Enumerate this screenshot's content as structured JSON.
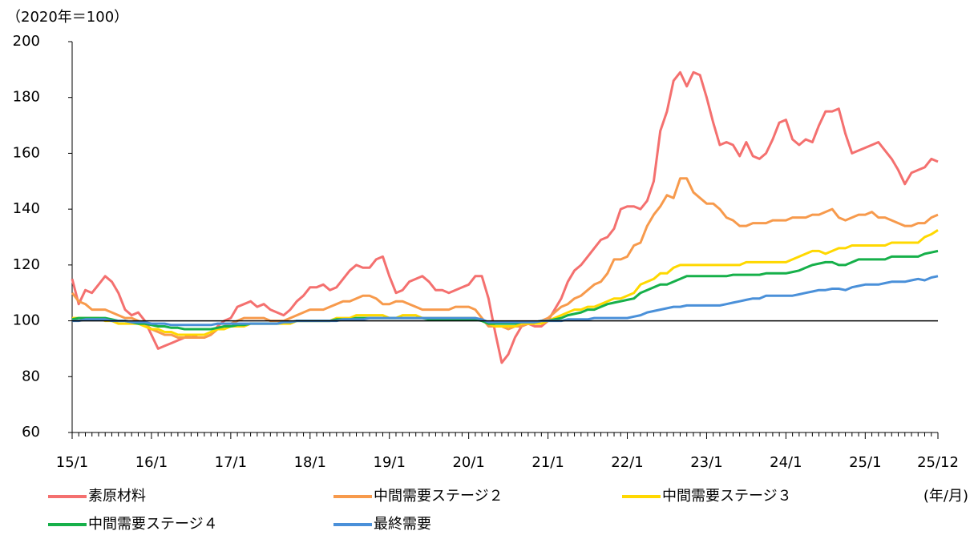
{
  "chart_data": {
    "type": "line",
    "ylabel": "（2020年＝100）",
    "xlabel": "(年/月)",
    "categories": [
      "15/1",
      null,
      null,
      null,
      null,
      null,
      null,
      null,
      null,
      null,
      null,
      null,
      "16/1",
      null,
      null,
      null,
      null,
      null,
      null,
      null,
      null,
      null,
      null,
      null,
      "17/1",
      null,
      null,
      null,
      null,
      null,
      null,
      null,
      null,
      null,
      null,
      null,
      "18/1",
      null,
      null,
      null,
      null,
      null,
      null,
      null,
      null,
      null,
      null,
      null,
      "19/1",
      null,
      null,
      null,
      null,
      null,
      null,
      null,
      null,
      null,
      null,
      null,
      "20/1",
      null,
      null,
      null,
      null,
      null,
      null,
      null,
      null,
      null,
      null,
      null,
      "21/1",
      null,
      null,
      null,
      null,
      null,
      null,
      null,
      null,
      null,
      null,
      null,
      "22/1",
      null,
      null,
      null,
      null,
      null,
      null,
      null,
      null,
      null,
      null,
      null,
      "23/1",
      null,
      null,
      null,
      null,
      null,
      null,
      null,
      null,
      null,
      null,
      null,
      "24/1",
      null,
      null,
      null,
      null,
      null,
      null,
      null,
      null,
      null,
      null,
      null,
      "25/1",
      null,
      null,
      null,
      null,
      null,
      null,
      null,
      null,
      null,
      null,
      "25/12"
    ],
    "ylim": [
      60,
      200
    ],
    "yticks": [
      60,
      80,
      100,
      120,
      140,
      160,
      180,
      200
    ],
    "baseline": 100,
    "series": [
      {
        "name": "素原材料",
        "color": "#f4706f",
        "values": [
          115,
          106,
          111,
          110,
          113,
          116,
          114,
          110,
          104,
          102,
          103,
          100,
          95,
          90,
          91,
          92,
          93,
          94,
          95,
          94,
          94,
          95,
          98,
          100,
          101,
          105,
          106,
          107,
          105,
          106,
          104,
          103,
          102,
          104,
          107,
          109,
          112,
          112,
          113,
          111,
          112,
          115,
          118,
          120,
          119,
          119,
          122,
          123,
          116,
          110,
          111,
          114,
          115,
          116,
          114,
          111,
          111,
          110,
          111,
          112,
          113,
          116,
          116,
          108,
          96,
          85,
          88,
          94,
          98,
          99,
          98,
          98,
          100,
          104,
          108,
          114,
          118,
          120,
          123,
          126,
          129,
          130,
          133,
          140,
          141,
          141,
          140,
          143,
          150,
          168,
          175,
          186,
          189,
          184,
          189,
          188,
          180,
          171,
          163,
          164,
          163,
          159,
          164,
          159,
          158,
          160,
          165,
          171,
          172,
          165,
          163,
          165,
          164,
          170,
          175,
          175,
          176,
          167,
          160,
          161,
          162,
          163,
          164,
          161,
          158,
          154,
          149,
          153,
          154,
          155,
          158,
          157
        ]
      },
      {
        "name": "中間需要ステージ２",
        "color": "#f79a4c",
        "values": [
          110,
          107,
          106,
          104,
          104,
          104,
          103,
          102,
          101,
          101,
          100,
          99,
          97,
          96,
          95,
          95,
          94,
          94,
          94,
          94,
          94,
          95,
          97,
          98,
          99,
          100,
          101,
          101,
          101,
          101,
          100,
          100,
          100,
          101,
          102,
          103,
          104,
          104,
          104,
          105,
          106,
          107,
          107,
          108,
          109,
          109,
          108,
          106,
          106,
          107,
          107,
          106,
          105,
          104,
          104,
          104,
          104,
          104,
          105,
          105,
          105,
          104,
          101,
          98,
          98,
          98,
          97,
          98,
          98,
          99,
          99,
          100,
          101,
          103,
          105,
          106,
          108,
          109,
          111,
          113,
          114,
          117,
          122,
          122,
          123,
          127,
          128,
          134,
          138,
          141,
          145,
          144,
          151,
          151,
          146,
          144,
          142,
          142,
          140,
          137,
          136,
          134,
          134,
          135,
          135,
          135,
          136,
          136,
          136,
          137,
          137,
          137,
          138,
          138,
          139,
          140,
          137,
          136,
          137,
          138,
          138,
          139,
          137,
          137,
          136,
          135,
          134,
          134,
          135,
          135,
          137,
          138
        ]
      },
      {
        "name": "中間需要ステージ３",
        "color": "#ffd800",
        "values": [
          101,
          101,
          101,
          101,
          101,
          100,
          100,
          99,
          99,
          99,
          99,
          98,
          97,
          97,
          96,
          96,
          95,
          95,
          95,
          95,
          95,
          96,
          97,
          97,
          98,
          98,
          98,
          99,
          99,
          99,
          99,
          99,
          99,
          99,
          100,
          100,
          100,
          100,
          100,
          100,
          101,
          101,
          101,
          102,
          102,
          102,
          102,
          102,
          101,
          101,
          102,
          102,
          102,
          101,
          101,
          101,
          101,
          101,
          101,
          101,
          101,
          101,
          100,
          99,
          98,
          98,
          98,
          98,
          99,
          99,
          99,
          99,
          100,
          101,
          102,
          103,
          104,
          104,
          105,
          105,
          106,
          107,
          108,
          108,
          109,
          110,
          113,
          114,
          115,
          117,
          117,
          119,
          120,
          120,
          120,
          120,
          120,
          120,
          120,
          120,
          120,
          120,
          121,
          121,
          121,
          121,
          121,
          121,
          121,
          122,
          123,
          124,
          125,
          125,
          124,
          125,
          126,
          126,
          127,
          127,
          127,
          127,
          127,
          127,
          128,
          128,
          128,
          128,
          128,
          130,
          131,
          132.5
        ]
      },
      {
        "name": "中間需要ステージ４",
        "color": "#16b04a",
        "values": [
          100.5,
          101,
          101,
          101,
          101,
          101,
          100.5,
          100,
          100,
          99.5,
          99,
          99,
          98.5,
          98,
          98,
          97.5,
          97.5,
          97,
          97,
          97,
          97,
          97,
          97.5,
          98,
          98,
          98.5,
          98.5,
          99,
          99,
          99,
          99,
          99,
          99.5,
          99.5,
          100,
          100,
          100,
          100,
          100,
          100,
          100.5,
          100.5,
          100.5,
          101,
          101,
          101,
          101,
          101,
          101,
          101,
          101,
          101,
          101,
          101,
          100.5,
          100.5,
          100.5,
          100.5,
          100.5,
          100.5,
          100.5,
          100.5,
          100,
          99,
          99,
          99,
          99,
          99,
          99.5,
          99.5,
          99.5,
          100,
          100,
          100.5,
          101,
          102,
          102.5,
          103,
          104,
          104,
          105,
          106,
          106.5,
          107,
          107.5,
          108,
          110,
          111,
          112,
          113,
          113,
          114,
          115,
          116,
          116,
          116,
          116,
          116,
          116,
          116,
          116.5,
          116.5,
          116.5,
          116.5,
          116.5,
          117,
          117,
          117,
          117,
          117.5,
          118,
          119,
          120,
          120.5,
          121,
          121,
          120,
          120,
          121,
          122,
          122,
          122,
          122,
          122,
          123,
          123,
          123,
          123,
          123,
          124,
          124.5,
          125
        ]
      },
      {
        "name": "最終需要",
        "color": "#4a90d9",
        "values": [
          100,
          100,
          100.5,
          100.5,
          100.5,
          100.5,
          100,
          100,
          100,
          99.5,
          99.5,
          99.5,
          99,
          99,
          99,
          98.5,
          98.5,
          98.5,
          98.5,
          98.5,
          98.5,
          98.5,
          99,
          99,
          99,
          99,
          99,
          99,
          99,
          99,
          99,
          99,
          99.5,
          99.5,
          100,
          100,
          100,
          100,
          100,
          100,
          100,
          100.5,
          100.5,
          100.5,
          100.5,
          101,
          101,
          101,
          101,
          101,
          101,
          101,
          101,
          101,
          101,
          101,
          101,
          101,
          101,
          101,
          101,
          101,
          100.5,
          99.5,
          99.5,
          99.5,
          99.5,
          99.5,
          99.5,
          99.5,
          99.5,
          100,
          100,
          100,
          100,
          100.5,
          100.5,
          100.5,
          100.5,
          101,
          101,
          101,
          101,
          101,
          101,
          101.5,
          102,
          103,
          103.5,
          104,
          104.5,
          105,
          105,
          105.5,
          105.5,
          105.5,
          105.5,
          105.5,
          105.5,
          106,
          106.5,
          107,
          107.5,
          108,
          108,
          109,
          109,
          109,
          109,
          109,
          109.5,
          110,
          110.5,
          111,
          111,
          111.5,
          111.5,
          111,
          112,
          112.5,
          113,
          113,
          113,
          113.5,
          114,
          114,
          114,
          114.5,
          115,
          114.5,
          115.5,
          116
        ]
      }
    ]
  }
}
